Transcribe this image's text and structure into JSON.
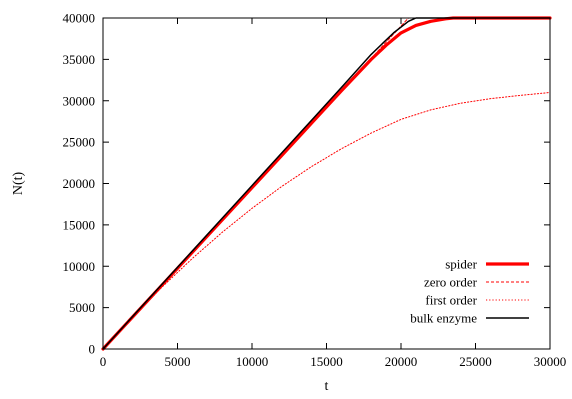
{
  "chart_data": {
    "type": "line",
    "title": "",
    "xlabel": "t",
    "ylabel": "N(t)",
    "xlim": [
      0,
      30000
    ],
    "ylim": [
      0,
      40000
    ],
    "x_ticks": [
      0,
      5000,
      10000,
      15000,
      20000,
      25000,
      30000
    ],
    "y_ticks": [
      0,
      5000,
      10000,
      15000,
      20000,
      25000,
      30000,
      35000,
      40000
    ],
    "grid": false,
    "legend_position": "bottom-right",
    "series": [
      {
        "name": "spider",
        "color": "#ff0000",
        "style": "thick-solid",
        "x": [
          0,
          2000,
          4000,
          6000,
          8000,
          10000,
          12000,
          14000,
          16000,
          18000,
          19000,
          20000,
          21000,
          22000,
          23000,
          23500,
          24000,
          30000
        ],
        "y": [
          0,
          3900,
          7800,
          11700,
          15600,
          19500,
          23400,
          27300,
          31200,
          35000,
          36700,
          38200,
          39100,
          39600,
          39900,
          40000,
          40000,
          40000
        ]
      },
      {
        "name": "zero order",
        "color": "#ff0000",
        "style": "dashed",
        "x": [
          0,
          20500
        ],
        "y": [
          0,
          40000
        ]
      },
      {
        "name": "first order",
        "color": "#ff0000",
        "style": "dotted",
        "x": [
          0,
          2000,
          4000,
          6000,
          8000,
          10000,
          12000,
          14000,
          16000,
          18000,
          20000,
          22000,
          24000,
          26000,
          28000,
          30000
        ],
        "y": [
          0,
          3900,
          7550,
          10950,
          14100,
          17000,
          19650,
          22050,
          24200,
          26100,
          27750,
          28900,
          29700,
          30250,
          30650,
          31000
        ]
      },
      {
        "name": "bulk enzyme",
        "color": "#000000",
        "style": "solid",
        "x": [
          0,
          2000,
          4000,
          6000,
          8000,
          10000,
          12000,
          14000,
          16000,
          18000,
          19500,
          20500,
          21000,
          22000,
          30000
        ],
        "y": [
          0,
          3950,
          7900,
          11850,
          15800,
          19750,
          23700,
          27650,
          31600,
          35600,
          38200,
          39600,
          40000,
          40000,
          40000
        ]
      }
    ]
  }
}
